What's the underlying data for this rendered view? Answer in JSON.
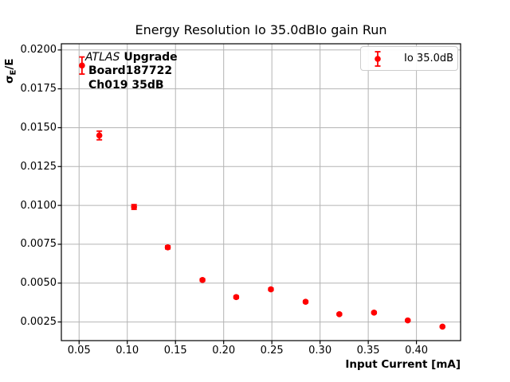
{
  "title": "Energy Resolution Io 35.0dBIo gain Run",
  "axes": {
    "xlabel": "Input Current [mA]",
    "ylabel": {
      "sigma": "σ",
      "subscript": "E",
      "rest": "/E"
    }
  },
  "annotation": {
    "experiment": "ATLAS",
    "experiment_suffix": "Upgrade",
    "board": "Board187722",
    "channel": "Ch019 35dB"
  },
  "legend": {
    "label": "Io 35.0dB"
  },
  "chart_data": {
    "type": "scatter",
    "title": "Energy Resolution Io 35.0dBIo gain Run",
    "xlabel": "Input Current [mA]",
    "ylabel": "sigma_E/E",
    "xlim": [
      0.0316,
      0.4458
    ],
    "ylim": [
      0.0013,
      0.0204
    ],
    "xticks": [
      0.05,
      0.1,
      0.15,
      0.2,
      0.25,
      0.3,
      0.35,
      0.4
    ],
    "yticks": [
      0.0025,
      0.005,
      0.0075,
      0.01,
      0.0125,
      0.015,
      0.0175,
      0.02
    ],
    "grid": true,
    "legend_position": "upper-right",
    "series": [
      {
        "name": "Io 35.0dB",
        "color": "#ff0000",
        "marker": "circle-errorbar",
        "x": [
          0.053,
          0.071,
          0.107,
          0.142,
          0.178,
          0.213,
          0.249,
          0.285,
          0.32,
          0.356,
          0.391,
          0.427
        ],
        "y": [
          0.019,
          0.0145,
          0.0099,
          0.0073,
          0.0052,
          0.0041,
          0.0046,
          0.0038,
          0.003,
          0.0031,
          0.0026,
          0.0022
        ],
        "yerr": [
          0.00055,
          0.00028,
          0.00015,
          0.0001,
          8e-05,
          8e-05,
          8e-05,
          7e-05,
          6e-05,
          6e-05,
          5e-05,
          5e-05
        ]
      }
    ]
  },
  "colors": {
    "marker": "#ff0000",
    "grid": "#b4b4b4",
    "spine": "#000000",
    "legend_border": "#cccccc",
    "text": "#000000",
    "background": "#ffffff"
  }
}
